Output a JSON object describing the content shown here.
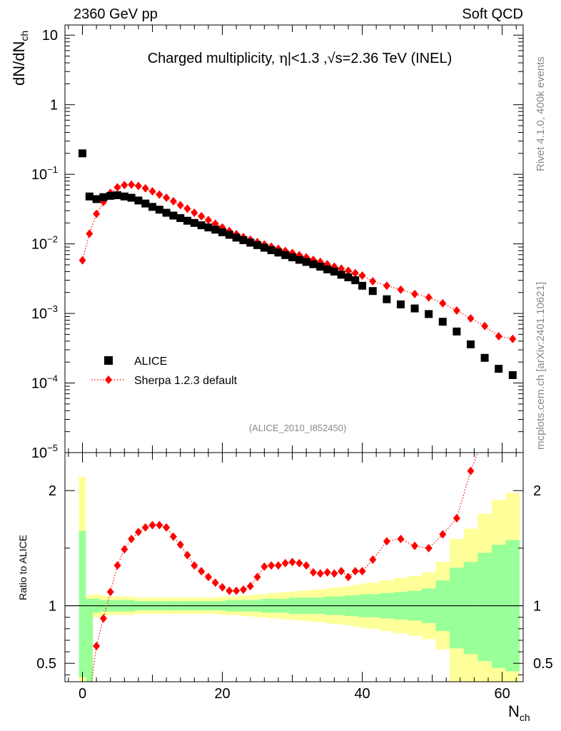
{
  "header": {
    "left": "2360 GeV pp",
    "right": "Soft QCD"
  },
  "side_labels": {
    "rivet": "Rivet 4.1.0,  400k events",
    "site": "mcplots.cern.ch [arXiv:2401.10621]"
  },
  "chart_data": [
    {
      "type": "scatter",
      "title": "Charged multiplicity, |η|<1.3 ,√s=2.36 TeV (INEL)",
      "title_parts": {
        "a": "Charged multiplicity, ",
        "eta": "η",
        "b": "|<1.3 ,",
        "sqrt": "√",
        "c": "s=2.36 TeV (INEL)"
      },
      "xlabel": "N",
      "xlabel_sub": "ch",
      "ylabel": "dN/dN",
      "ylabel_sub": "ch",
      "yscale": "log",
      "xlim": [
        -2.5,
        63
      ],
      "ylim": [
        1e-05,
        14
      ],
      "ytick_labels": [
        {
          "value": 10,
          "label": "10"
        },
        {
          "value": 1,
          "label": "1"
        },
        {
          "value": 0.1,
          "base": "10",
          "exp": "−1"
        },
        {
          "value": 0.01,
          "base": "10",
          "exp": "−2"
        },
        {
          "value": 0.001,
          "base": "10",
          "exp": "−3"
        },
        {
          "value": 0.0001,
          "base": "10",
          "exp": "−4"
        },
        {
          "value": 1e-05,
          "base": "10",
          "exp": "−5"
        }
      ],
      "watermark": "(ALICE_2010_I852450)",
      "legend_position": "lower-left",
      "series": [
        {
          "name": "ALICE",
          "marker": "square",
          "color": "#000000",
          "points": [
            [
              0,
              0.2
            ],
            [
              1,
              0.048
            ],
            [
              2,
              0.044
            ],
            [
              3,
              0.047
            ],
            [
              4,
              0.049
            ],
            [
              5,
              0.05
            ],
            [
              6,
              0.048
            ],
            [
              7,
              0.046
            ],
            [
              8,
              0.042
            ],
            [
              9,
              0.038
            ],
            [
              10,
              0.034
            ],
            [
              11,
              0.031
            ],
            [
              12,
              0.028
            ],
            [
              13,
              0.0255
            ],
            [
              14,
              0.0235
            ],
            [
              15,
              0.0215
            ],
            [
              16,
              0.02
            ],
            [
              17,
              0.0185
            ],
            [
              18,
              0.0172
            ],
            [
              19,
              0.016
            ],
            [
              20,
              0.0147
            ],
            [
              21,
              0.0135
            ],
            [
              22,
              0.0123
            ],
            [
              23,
              0.0113
            ],
            [
              24,
              0.0104
            ],
            [
              25,
              0.0096
            ],
            [
              26,
              0.0088
            ],
            [
              27,
              0.0081
            ],
            [
              28,
              0.0075
            ],
            [
              29,
              0.0069
            ],
            [
              30,
              0.0064
            ],
            [
              31,
              0.0059
            ],
            [
              32,
              0.0055
            ],
            [
              33,
              0.0051
            ],
            [
              34,
              0.0047
            ],
            [
              35,
              0.0043
            ],
            [
              36,
              0.004
            ],
            [
              37,
              0.0036
            ],
            [
              38,
              0.0033
            ],
            [
              39,
              0.003
            ],
            [
              40,
              0.0025
            ],
            [
              41.5,
              0.0021
            ],
            [
              43.5,
              0.0016
            ],
            [
              45.5,
              0.00135
            ],
            [
              47.5,
              0.00118
            ],
            [
              49.5,
              0.00098
            ],
            [
              51.5,
              0.00076
            ],
            [
              53.5,
              0.00055
            ],
            [
              55.5,
              0.00036
            ],
            [
              57.5,
              0.00023
            ],
            [
              59.5,
              0.00016
            ],
            [
              61.5,
              0.00013
            ]
          ]
        },
        {
          "name": "Sherpa 1.2.3 default",
          "marker": "diamond",
          "line": "dotted",
          "color": "#ff0000",
          "points": [
            [
              0,
              0.0058
            ],
            [
              1,
              0.014
            ],
            [
              2,
              0.027
            ],
            [
              3,
              0.04
            ],
            [
              4,
              0.054
            ],
            [
              5,
              0.065
            ],
            [
              6,
              0.07
            ],
            [
              7,
              0.071
            ],
            [
              8,
              0.068
            ],
            [
              9,
              0.063
            ],
            [
              10,
              0.057
            ],
            [
              11,
              0.051
            ],
            [
              12,
              0.046
            ],
            [
              13,
              0.041
            ],
            [
              14,
              0.036
            ],
            [
              15,
              0.032
            ],
            [
              16,
              0.028
            ],
            [
              17,
              0.025
            ],
            [
              18,
              0.022
            ],
            [
              19,
              0.0195
            ],
            [
              20,
              0.0172
            ],
            [
              21,
              0.0153
            ],
            [
              22,
              0.0138
            ],
            [
              23,
              0.0125
            ],
            [
              24,
              0.0115
            ],
            [
              25,
              0.0106
            ],
            [
              26,
              0.0098
            ],
            [
              27,
              0.0091
            ],
            [
              28,
              0.0085
            ],
            [
              29,
              0.0079
            ],
            [
              30,
              0.0074
            ],
            [
              31,
              0.0069
            ],
            [
              32,
              0.0064
            ],
            [
              33,
              0.0059
            ],
            [
              34,
              0.0055
            ],
            [
              35,
              0.0051
            ],
            [
              36,
              0.0047
            ],
            [
              37,
              0.0044
            ],
            [
              38,
              0.0041
            ],
            [
              39,
              0.0038
            ],
            [
              40,
              0.0035
            ],
            [
              41.5,
              0.0029
            ],
            [
              43.5,
              0.0025
            ],
            [
              45.5,
              0.0022
            ],
            [
              47.5,
              0.0019
            ],
            [
              49.5,
              0.0017
            ],
            [
              51.5,
              0.0014
            ],
            [
              53.5,
              0.0011
            ],
            [
              55.5,
              0.00085
            ],
            [
              57.5,
              0.00066
            ],
            [
              59.5,
              0.00047
            ],
            [
              61.5,
              0.00043
            ]
          ]
        }
      ]
    },
    {
      "type": "scatter",
      "ylabel": "Ratio to ALICE",
      "xlim": [
        -2.5,
        63
      ],
      "ylim": [
        0.34,
        2.33
      ],
      "xtick_labels": [
        {
          "value": 0,
          "label": "0"
        },
        {
          "value": 20,
          "label": "20"
        },
        {
          "value": 40,
          "label": "40"
        },
        {
          "value": 60,
          "label": "60"
        }
      ],
      "ytick_labels": [
        {
          "value": 0.5,
          "label": "0.5"
        },
        {
          "value": 1,
          "label": "1"
        },
        {
          "value": 2,
          "label": "2"
        }
      ],
      "reference_line": 1,
      "uncertainty_bands": {
        "outer_color": "#ffff99",
        "inner_color": "#99ff99",
        "bins": [
          [
            -0.5,
            0.5,
            0.34,
            2.12,
            0.38,
            1.65
          ],
          [
            0.5,
            1.5,
            0.34,
            1.09,
            0.34,
            1.06
          ],
          [
            1.5,
            2.5,
            0.9,
            1.1,
            0.94,
            1.06
          ],
          [
            2.5,
            3.5,
            0.91,
            1.09,
            0.95,
            1.05
          ],
          [
            3.5,
            4.5,
            0.92,
            1.08,
            0.95,
            1.05
          ],
          [
            4.5,
            5.5,
            0.92,
            1.08,
            0.95,
            1.05
          ],
          [
            5.5,
            6.5,
            0.92,
            1.08,
            0.95,
            1.05
          ],
          [
            6.5,
            7.5,
            0.92,
            1.08,
            0.95,
            1.05
          ],
          [
            7.5,
            8.5,
            0.93,
            1.07,
            0.96,
            1.04
          ],
          [
            8.5,
            9.5,
            0.93,
            1.07,
            0.96,
            1.04
          ],
          [
            9.5,
            10.5,
            0.93,
            1.07,
            0.96,
            1.04
          ],
          [
            10.5,
            11.5,
            0.93,
            1.07,
            0.96,
            1.04
          ],
          [
            11.5,
            12.5,
            0.93,
            1.07,
            0.96,
            1.04
          ],
          [
            12.5,
            13.5,
            0.93,
            1.07,
            0.96,
            1.04
          ],
          [
            13.5,
            14.5,
            0.93,
            1.07,
            0.96,
            1.04
          ],
          [
            14.5,
            15.5,
            0.93,
            1.07,
            0.96,
            1.04
          ],
          [
            15.5,
            16.5,
            0.93,
            1.07,
            0.96,
            1.04
          ],
          [
            16.5,
            17.5,
            0.93,
            1.07,
            0.96,
            1.04
          ],
          [
            17.5,
            18.5,
            0.93,
            1.07,
            0.96,
            1.04
          ],
          [
            18.5,
            19.5,
            0.93,
            1.07,
            0.96,
            1.04
          ],
          [
            19.5,
            20.5,
            0.92,
            1.08,
            0.96,
            1.04
          ],
          [
            20.5,
            21.5,
            0.92,
            1.08,
            0.95,
            1.05
          ],
          [
            21.5,
            22.5,
            0.92,
            1.08,
            0.95,
            1.05
          ],
          [
            22.5,
            23.5,
            0.91,
            1.09,
            0.95,
            1.05
          ],
          [
            23.5,
            24.5,
            0.91,
            1.09,
            0.95,
            1.05
          ],
          [
            24.5,
            25.5,
            0.9,
            1.1,
            0.95,
            1.05
          ],
          [
            25.5,
            26.5,
            0.9,
            1.1,
            0.94,
            1.06
          ],
          [
            26.5,
            27.5,
            0.89,
            1.11,
            0.94,
            1.06
          ],
          [
            27.5,
            28.5,
            0.89,
            1.11,
            0.94,
            1.06
          ],
          [
            28.5,
            29.5,
            0.88,
            1.12,
            0.94,
            1.06
          ],
          [
            29.5,
            30.5,
            0.88,
            1.12,
            0.93,
            1.07
          ],
          [
            30.5,
            31.5,
            0.87,
            1.13,
            0.93,
            1.07
          ],
          [
            31.5,
            32.5,
            0.87,
            1.13,
            0.93,
            1.07
          ],
          [
            32.5,
            33.5,
            0.86,
            1.14,
            0.93,
            1.07
          ],
          [
            33.5,
            34.5,
            0.86,
            1.14,
            0.93,
            1.07
          ],
          [
            34.5,
            35.5,
            0.85,
            1.15,
            0.92,
            1.08
          ],
          [
            35.5,
            36.5,
            0.84,
            1.16,
            0.92,
            1.08
          ],
          [
            36.5,
            37.5,
            0.84,
            1.16,
            0.92,
            1.08
          ],
          [
            37.5,
            38.5,
            0.83,
            1.17,
            0.91,
            1.09
          ],
          [
            38.5,
            39.5,
            0.82,
            1.18,
            0.91,
            1.09
          ],
          [
            39.5,
            40.5,
            0.81,
            1.19,
            0.9,
            1.1
          ],
          [
            40.5,
            42.5,
            0.8,
            1.2,
            0.9,
            1.1
          ],
          [
            42.5,
            44.5,
            0.78,
            1.22,
            0.89,
            1.11
          ],
          [
            44.5,
            46.5,
            0.76,
            1.24,
            0.88,
            1.12
          ],
          [
            46.5,
            48.5,
            0.74,
            1.26,
            0.87,
            1.13
          ],
          [
            48.5,
            50.5,
            0.71,
            1.29,
            0.85,
            1.15
          ],
          [
            50.5,
            52.5,
            0.62,
            1.38,
            0.78,
            1.22
          ],
          [
            52.5,
            54.5,
            0.34,
            1.58,
            0.63,
            1.33
          ],
          [
            54.5,
            56.5,
            0.34,
            1.67,
            0.58,
            1.38
          ],
          [
            56.5,
            58.5,
            0.34,
            1.8,
            0.52,
            1.46
          ],
          [
            58.5,
            60.5,
            0.34,
            1.92,
            0.46,
            1.53
          ],
          [
            60.5,
            62.5,
            0.34,
            1.98,
            0.43,
            1.57
          ]
        ]
      },
      "ratio_series": {
        "name": "Sherpa 1.2.3 default",
        "marker": "diamond",
        "line": "dotted",
        "color": "#ff0000",
        "points": [
          [
            2,
            0.65
          ],
          [
            3,
            0.89
          ],
          [
            4,
            1.12
          ],
          [
            5,
            1.35
          ],
          [
            6,
            1.49
          ],
          [
            7,
            1.58
          ],
          [
            8,
            1.64
          ],
          [
            9,
            1.68
          ],
          [
            10,
            1.7
          ],
          [
            11,
            1.7
          ],
          [
            12,
            1.68
          ],
          [
            13,
            1.6
          ],
          [
            14,
            1.53
          ],
          [
            15,
            1.44
          ],
          [
            16,
            1.35
          ],
          [
            17,
            1.3
          ],
          [
            18,
            1.25
          ],
          [
            19,
            1.2
          ],
          [
            20,
            1.16
          ],
          [
            21,
            1.13
          ],
          [
            22,
            1.13
          ],
          [
            23,
            1.14
          ],
          [
            24,
            1.17
          ],
          [
            25,
            1.25
          ],
          [
            26,
            1.34
          ],
          [
            27,
            1.35
          ],
          [
            28,
            1.35
          ],
          [
            29,
            1.37
          ],
          [
            30,
            1.38
          ],
          [
            31,
            1.37
          ],
          [
            32,
            1.35
          ],
          [
            33,
            1.29
          ],
          [
            34,
            1.28
          ],
          [
            35,
            1.29
          ],
          [
            36,
            1.28
          ],
          [
            37,
            1.3
          ],
          [
            38,
            1.25
          ],
          [
            39,
            1.3
          ],
          [
            40,
            1.3
          ],
          [
            41.5,
            1.4
          ],
          [
            43.5,
            1.56
          ],
          [
            45.5,
            1.58
          ],
          [
            47.5,
            1.52
          ],
          [
            49.5,
            1.5
          ],
          [
            51.5,
            1.62
          ],
          [
            53.5,
            1.76
          ],
          [
            55.5,
            2.17
          ],
          [
            56.5,
            2.33
          ]
        ]
      }
    }
  ]
}
